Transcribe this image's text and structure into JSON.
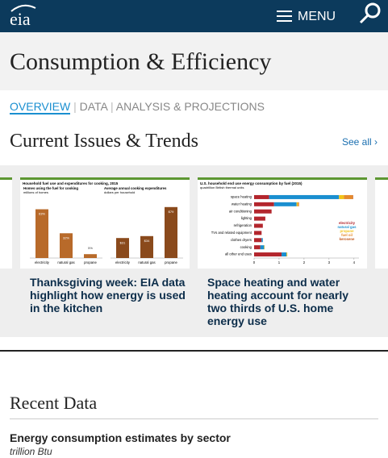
{
  "header": {
    "logo": "eia",
    "menu": "MENU"
  },
  "page_title": "Consumption & Efficiency",
  "tabs": [
    "OVERVIEW",
    "DATA",
    "ANALYSIS & PROJECTIONS"
  ],
  "current_issues": {
    "title": "Current Issues & Trends",
    "see_all": "See all ›",
    "cards": [
      {
        "headline": "Thanksgiving week: EIA data highlight how energy is used in the kitchen",
        "thumbnail": {
          "type": "bar",
          "title": "Household fuel use and expenditures for cooking, 2015",
          "panels": [
            {
              "title": "Homes using the fuel for cooking",
              "unit": "millions of homes",
              "categories": [
                "electricity",
                "natural gas",
                "propane"
              ],
              "values": [
                63,
                32,
                5
              ],
              "value_labels": [
                "63%",
                "32%",
                "5%"
              ],
              "ylim": [
                0,
                75
              ],
              "color": "#b86a2a"
            },
            {
              "title": "Average annual cooking expenditures",
              "unit": "dollars per household",
              "categories": [
                "electricity",
                "natural gas",
                "propane"
              ],
              "values": [
                31,
                34,
                79
              ],
              "value_labels": [
                "$31",
                "$34",
                "$79"
              ],
              "ylim": [
                0,
                90
              ],
              "color": "#8a4a1c"
            }
          ]
        }
      },
      {
        "headline": "Space heating and water heating account for nearly two thirds of U.S. home energy use",
        "thumbnail": {
          "type": "stacked_hbar",
          "title": "U.S. household end use energy consumption by fuel (2015)",
          "unit": "quadrillion British thermal units",
          "categories": [
            "space heating",
            "water heating",
            "air conditioning",
            "lighting",
            "refrigeration",
            "TVs and related equipment",
            "clothes dryers",
            "cooking",
            "all other end uses"
          ],
          "series": [
            {
              "name": "electricity",
              "color": "#b3262d",
              "values": [
                0.6,
                0.8,
                0.7,
                0.45,
                0.35,
                0.3,
                0.3,
                0.25,
                1.1
              ]
            },
            {
              "name": "natural gas",
              "color": "#1a8fd0",
              "values": [
                2.8,
                0.9,
                0,
                0,
                0,
                0,
                0.05,
                0.15,
                0.2
              ]
            },
            {
              "name": "propane",
              "color": "#f2c318",
              "values": [
                0.2,
                0.05,
                0,
                0,
                0,
                0,
                0,
                0.02,
                0.03
              ]
            },
            {
              "name": "fuel oil",
              "color": "#e58a2d",
              "values": [
                0.35,
                0.05,
                0,
                0,
                0,
                0,
                0,
                0,
                0
              ]
            },
            {
              "name": "kerosene",
              "color": "#c35a1e",
              "values": [
                0.02,
                0,
                0,
                0,
                0,
                0,
                0,
                0,
                0
              ]
            }
          ],
          "xlim": [
            0,
            4.2
          ],
          "xticks": [
            0,
            1,
            2,
            3,
            4
          ]
        }
      }
    ]
  },
  "recent_data": {
    "title": "Recent Data",
    "item_title": "Energy consumption estimates by sector",
    "item_units": "trillion Btu"
  }
}
